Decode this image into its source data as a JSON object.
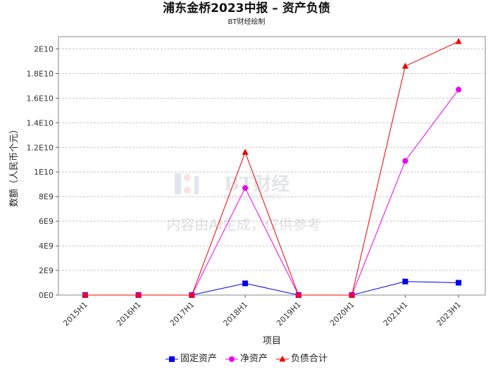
{
  "header": {
    "title": "浦东金桥2023中报 – 资产负债",
    "subtitle": "BT财经绘制"
  },
  "watermark": {
    "logo_text": "BT财经",
    "logo_subtext": "BUSINESSTIMES",
    "notice": "内容由AI生成，仅供参考"
  },
  "chart_data": {
    "type": "line",
    "title": "浦东金桥2023中报 – 资产负债",
    "subtitle": "BT财经绘制",
    "xlabel": "项目",
    "ylabel": "数额（人民币个元）",
    "categories": [
      "2015H1",
      "2016H1",
      "2017H1",
      "2018H1",
      "2019H1",
      "2020H1",
      "2021H1",
      "2023H1"
    ],
    "ylim": [
      0,
      21000000000
    ],
    "yticks": [
      0,
      2000000000,
      4000000000,
      6000000000,
      8000000000,
      10000000000,
      12000000000,
      14000000000,
      16000000000,
      18000000000,
      20000000000
    ],
    "ytick_labels": [
      "0E0",
      "2E9",
      "4E9",
      "6E9",
      "8E9",
      "1E10",
      "1.2E10",
      "1.4E10",
      "1.6E10",
      "1.8E10",
      "2E10"
    ],
    "grid": true,
    "legend_position": "bottom",
    "series": [
      {
        "name": "固定资产",
        "color": "#0000ee",
        "marker": "square",
        "values": [
          0,
          0,
          0,
          950000000,
          0,
          0,
          1100000000,
          1000000000
        ]
      },
      {
        "name": "净资产",
        "color": "#ee00ee",
        "marker": "circle",
        "values": [
          0,
          0,
          0,
          8700000000,
          0,
          0,
          10900000000,
          16700000000
        ]
      },
      {
        "name": "负债合计",
        "color": "#ee0000",
        "marker": "triangle",
        "values": [
          0,
          0,
          0,
          11600000000,
          0,
          0,
          18600000000,
          20600000000
        ]
      }
    ]
  }
}
